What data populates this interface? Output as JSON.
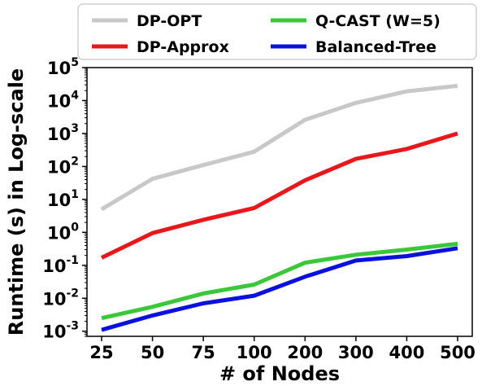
{
  "chart_data": {
    "type": "line",
    "title": "",
    "xlabel": "# of Nodes",
    "ylabel": "Runtime (s) in Log-scale",
    "y_scale": "log",
    "ylim": [
      0.0007,
      100000
    ],
    "grid": false,
    "legend_position": "top",
    "categories": [
      "25",
      "50",
      "75",
      "100",
      "200",
      "300",
      "400",
      "500"
    ],
    "y_ticks": [
      {
        "base": "10",
        "exp": "-3",
        "value": 0.001
      },
      {
        "base": "10",
        "exp": "-2",
        "value": 0.01
      },
      {
        "base": "10",
        "exp": "-1",
        "value": 0.1
      },
      {
        "base": "10",
        "exp": "0",
        "value": 1
      },
      {
        "base": "10",
        "exp": "1",
        "value": 10
      },
      {
        "base": "10",
        "exp": "2",
        "value": 100
      },
      {
        "base": "10",
        "exp": "3",
        "value": 1000
      },
      {
        "base": "10",
        "exp": "4",
        "value": 10000
      },
      {
        "base": "10",
        "exp": "5",
        "value": 100000
      }
    ],
    "series": [
      {
        "name": "DP-OPT",
        "color": "#c8c8c8",
        "values": [
          5,
          42,
          110,
          280,
          2600,
          8500,
          19000,
          28000
        ]
      },
      {
        "name": "DP-Approx",
        "color": "#e8171b",
        "values": [
          0.17,
          0.95,
          2.4,
          5.5,
          38,
          170,
          340,
          1000
        ]
      },
      {
        "name": "Q-CAST (W=5)",
        "color": "#3ac83a",
        "values": [
          0.0025,
          0.0055,
          0.014,
          0.026,
          0.12,
          0.21,
          0.3,
          0.45
        ]
      },
      {
        "name": "Balanced-Tree",
        "color": "#0a10e0",
        "values": [
          0.0011,
          0.003,
          0.007,
          0.012,
          0.045,
          0.14,
          0.19,
          0.33
        ]
      }
    ]
  }
}
